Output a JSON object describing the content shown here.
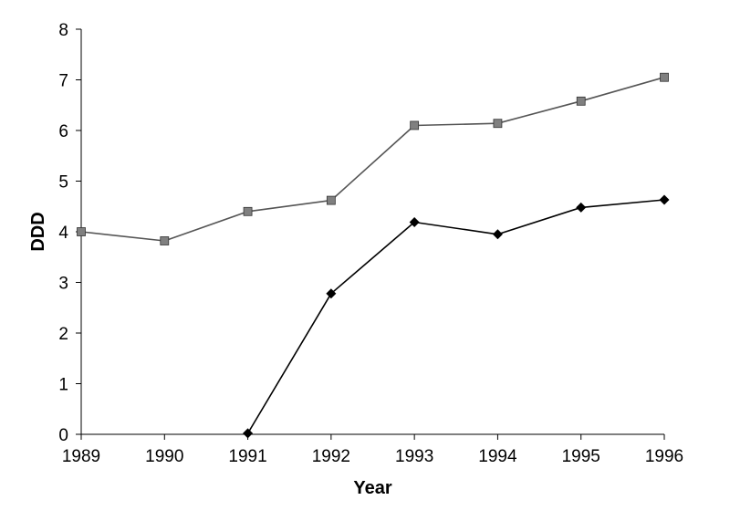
{
  "chart_data": {
    "type": "line",
    "title": "",
    "xlabel": "Year",
    "ylabel": "DDD",
    "x": [
      1989,
      1990,
      1991,
      1992,
      1993,
      1994,
      1995,
      1996
    ],
    "x_tick_labels": [
      "1989",
      "1990",
      "1991",
      "1992",
      "1993",
      "1994",
      "1995",
      "1996"
    ],
    "y_tick_labels": [
      "0",
      "1",
      "2",
      "3",
      "4",
      "5",
      "6",
      "7",
      "8"
    ],
    "xlim": [
      1989,
      1996
    ],
    "ylim": [
      0,
      8
    ],
    "grid": false,
    "legend": "none",
    "series": [
      {
        "marker": "square",
        "color": "#808080",
        "line_color": "#555555",
        "x": [
          1989,
          1990,
          1991,
          1992,
          1993,
          1994,
          1995,
          1996
        ],
        "values": [
          4.0,
          3.82,
          4.4,
          4.62,
          6.1,
          6.14,
          6.58,
          7.05
        ]
      },
      {
        "marker": "diamond",
        "color": "#000000",
        "line_color": "#000000",
        "x": [
          1991,
          1992,
          1993,
          1994,
          1995,
          1996
        ],
        "values": [
          0.02,
          2.78,
          4.19,
          3.95,
          4.48,
          4.63
        ]
      }
    ]
  }
}
